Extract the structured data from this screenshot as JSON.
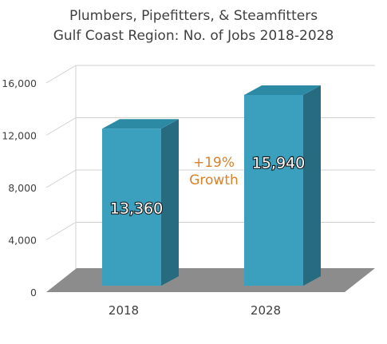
{
  "chart_data": {
    "type": "bar",
    "title": "Plumbers, Pipefitters, & Steamfitters",
    "subtitle": "Gulf Coast Region: No. of Jobs 2018-2028",
    "categories": [
      "2018",
      "2028"
    ],
    "values": [
      13360,
      15940
    ],
    "data_labels": [
      "13,360",
      "15,940"
    ],
    "yticks": [
      "0",
      "4,000",
      "8,000",
      "12,000",
      "16,000"
    ],
    "ylim": [
      0,
      16000
    ],
    "grid": true,
    "annotation": {
      "line1": "+19%",
      "line2": "Growth"
    },
    "colors": {
      "bar_front": "#3aa0bd",
      "bar_side": "#266b80",
      "bar_top": "#2d8aa5",
      "floor": "#8c8c8c",
      "grid": "#d0d0d0",
      "annotation": "#d9822b"
    }
  }
}
